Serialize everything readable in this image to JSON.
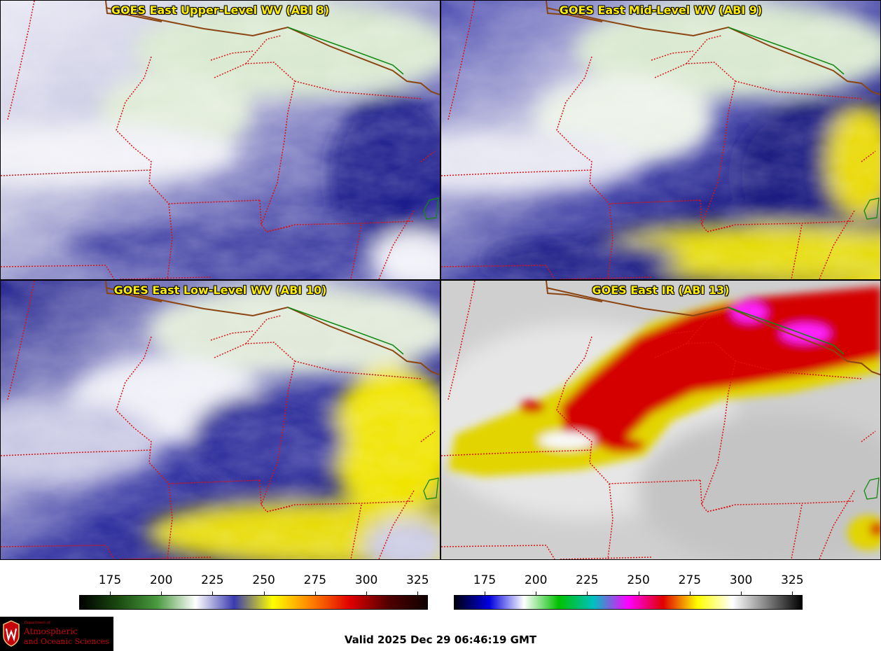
{
  "panels": [
    {
      "title": "GOES East Upper-Level WV (ABI 8)",
      "style": "upper"
    },
    {
      "title": "GOES East Mid-Level WV (ABI 9)",
      "style": "mid"
    },
    {
      "title": "GOES East Low-Level WV (ABI 10)",
      "style": "low"
    },
    {
      "title": "GOES East IR (ABI 13)",
      "style": "ir"
    }
  ],
  "colorbars": [
    {
      "name": "water-vapor",
      "ticks": [
        "175",
        "200",
        "225",
        "250",
        "275",
        "300",
        "325"
      ],
      "range": [
        160,
        330
      ],
      "stops": [
        "#000000",
        "#1a4a10",
        "#4a9a40",
        "#ffffff",
        "#3a3ab0",
        "#ffff00",
        "#ff8000",
        "#e00000",
        "#500000",
        "#100000"
      ]
    },
    {
      "name": "infrared",
      "ticks": [
        "175",
        "200",
        "225",
        "250",
        "275",
        "300",
        "325"
      ],
      "range": [
        160,
        330
      ],
      "stops": [
        "#000010",
        "#0000e0",
        "#ffffff",
        "#00c000",
        "#00c0c0",
        "#ff00ff",
        "#e00000",
        "#ffff00",
        "#ffffff",
        "#808080",
        "#000000"
      ]
    }
  ],
  "valid_time": "Valid 2025 Dec 29 06:46:19 GMT",
  "logo": {
    "dept": "Department of",
    "line1": "Atmospheric",
    "line2": "and Oceanic Sciences"
  },
  "colors": {
    "title_text": "#ffee00",
    "state_border": "#dd1111",
    "coast": "#8b4513",
    "intl_border": "#118811"
  }
}
